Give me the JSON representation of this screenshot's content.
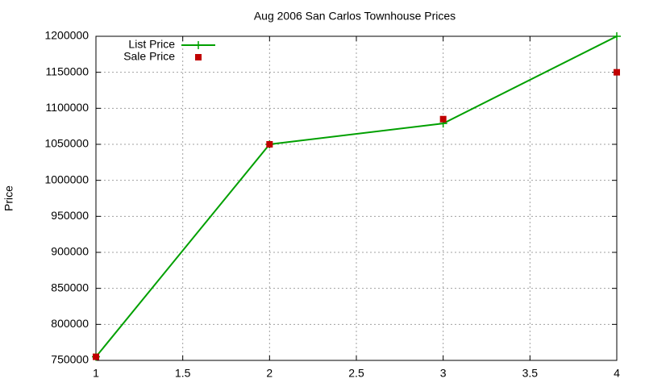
{
  "chart_data": {
    "type": "line",
    "title": "Aug 2006 San Carlos Townhouse Prices",
    "y_label": "Price",
    "x": [
      1,
      2,
      3,
      4
    ],
    "series": [
      {
        "name": "List Price",
        "color": "#00a000",
        "mode": "lines+markers",
        "values": [
          755000,
          1050000,
          1079000,
          1200000
        ]
      },
      {
        "name": "Sale Price",
        "color": "#c00000",
        "mode": "markers",
        "values": [
          755000,
          1050000,
          1085000,
          1150000
        ]
      }
    ],
    "xlim": [
      1,
      4
    ],
    "xticks": [
      1,
      1.5,
      2,
      2.5,
      3,
      3.5,
      4
    ],
    "ylim": [
      750000,
      1200000
    ],
    "yticks": [
      750000,
      800000,
      850000,
      900000,
      950000,
      1000000,
      1050000,
      1100000,
      1150000,
      1200000
    ],
    "grid": true,
    "legend": "top-left"
  }
}
